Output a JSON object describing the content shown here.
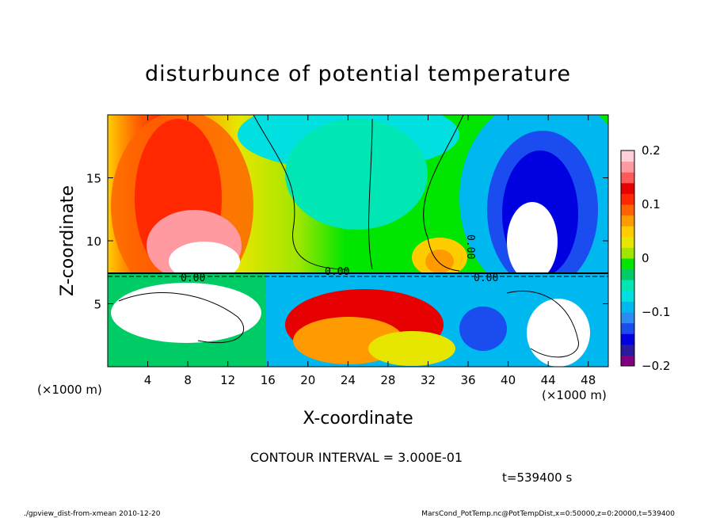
{
  "chart_data": {
    "type": "heatmap",
    "title": "disturbunce of potential temperature",
    "xlabel": "X-coordinate",
    "ylabel": "Z-coordinate",
    "xlim": [
      0,
      50
    ],
    "ylim": [
      0,
      20
    ],
    "x_ticks": [
      4,
      8,
      12,
      16,
      20,
      24,
      28,
      32,
      36,
      40,
      44,
      48
    ],
    "y_ticks": [
      5,
      10,
      15
    ],
    "x_unit_left": "(×1000 m)",
    "x_unit_right": "(×1000 m)",
    "colorbar": {
      "range": [
        -0.2,
        0.2
      ],
      "ticks": [
        "0.2",
        "0.1",
        "0",
        "−0.1",
        "−0.2"
      ],
      "colors": [
        "#800080",
        "#2a1aa0",
        "#0000e0",
        "#1a4cf0",
        "#2a8cf0",
        "#00b8f0",
        "#00e0e0",
        "#00e6b4",
        "#00cc66",
        "#00e600",
        "#a0e600",
        "#e6e600",
        "#ffcc00",
        "#ff9a00",
        "#ff6400",
        "#ff2800",
        "#e60000",
        "#ff5a5a",
        "#ff9aa0",
        "#ffd0d8"
      ]
    },
    "contour_labels": [
      "0.00",
      "0.00",
      "0.00",
      "0.00"
    ],
    "contour_interval_text": "CONTOUR INTERVAL = 3.000E-01",
    "time_text": "t=539400 s"
  },
  "footer": {
    "left": "./gpview_dist-from-xmean  2010-12-20",
    "right": "MarsCond_PotTemp.nc@PotTempDist,x=0:50000,z=0:20000,t=539400"
  }
}
